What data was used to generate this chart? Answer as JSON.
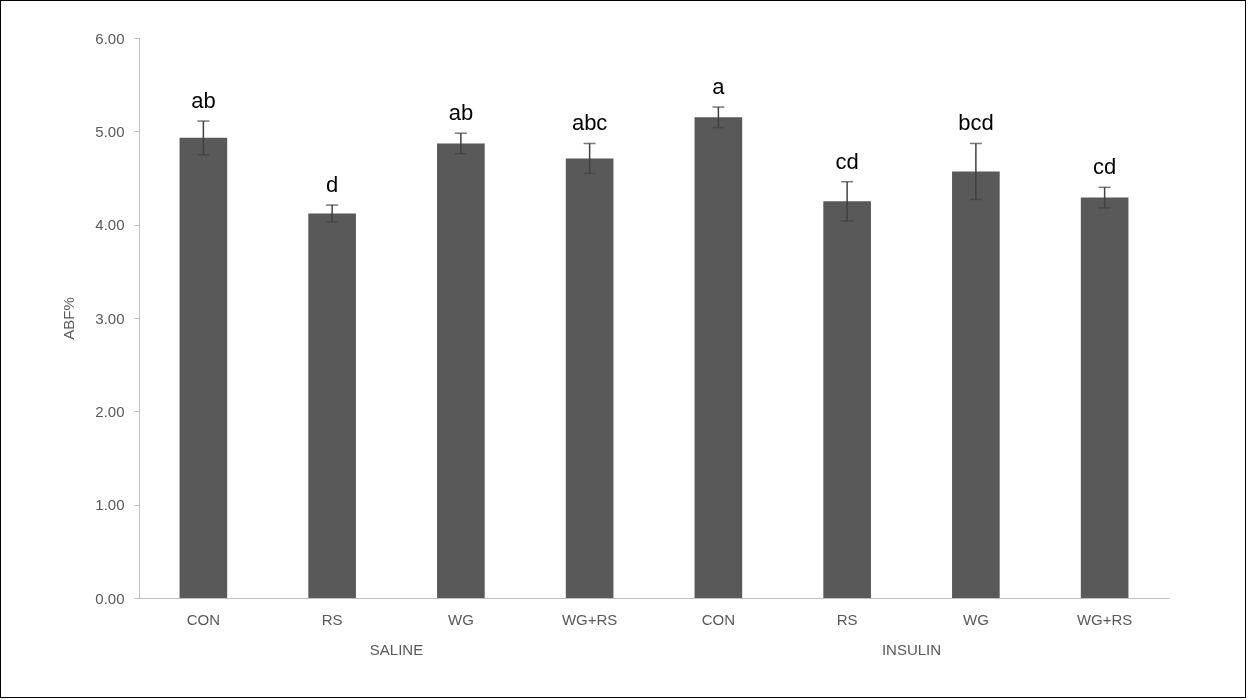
{
  "chart_data": {
    "type": "bar",
    "ylabel": "ABF%",
    "categories": [
      "CON",
      "RS",
      "WG",
      "WG+RS",
      "CON",
      "RS",
      "WG",
      "WG+RS"
    ],
    "values": [
      4.93,
      4.12,
      4.87,
      4.71,
      5.15,
      4.25,
      4.57,
      4.29
    ],
    "errors": [
      0.18,
      0.09,
      0.11,
      0.16,
      0.11,
      0.21,
      0.3,
      0.11
    ],
    "value_labels": [
      "ab",
      "d",
      "ab",
      "abc",
      "a",
      "cd",
      "bcd",
      "cd"
    ],
    "color": "#595959",
    "ylim": [
      0,
      6
    ],
    "yticks": [
      {
        "value": 0,
        "label": "0.00"
      },
      {
        "value": 1,
        "label": "1.00"
      },
      {
        "value": 2,
        "label": "2.00"
      },
      {
        "value": 3,
        "label": "3.00"
      },
      {
        "value": 4,
        "label": "4.00"
      },
      {
        "value": 5,
        "label": "5.00"
      },
      {
        "value": 6,
        "label": "6.00"
      }
    ],
    "annotations": [
      "SALINE",
      "INSULIN"
    ],
    "grid": false
  }
}
